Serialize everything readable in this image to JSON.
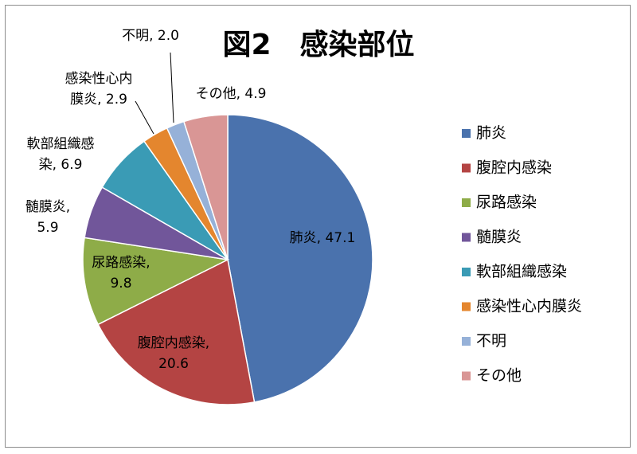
{
  "chart_data": {
    "type": "pie",
    "title": "図2　感染部位",
    "categories": [
      "肺炎",
      "腹腔内感染",
      "尿路感染",
      "髄膜炎",
      "軟部組織感染",
      "感染性心内膜炎",
      "不明",
      "その他"
    ],
    "values": [
      47.1,
      20.6,
      9.8,
      5.9,
      6.9,
      2.9,
      2.0,
      4.9
    ],
    "colors": [
      "#4a72ad",
      "#b44443",
      "#8eac48",
      "#71569a",
      "#3a9bb5",
      "#e4862e",
      "#96b1d8",
      "#d99695"
    ],
    "data_labels": [
      [
        "肺炎, 47.1"
      ],
      [
        "腹腔内感染,",
        "20.6"
      ],
      [
        "尿路感染,",
        "9.8"
      ],
      [
        "髄膜炎,",
        "5.9"
      ],
      [
        "軟部組織感",
        "染, 6.9"
      ],
      [
        "感染性心内",
        "膜炎, 2.9"
      ],
      [
        "不明, 2.0"
      ],
      [
        "その他, 4.9"
      ]
    ],
    "legend_position": "right"
  }
}
